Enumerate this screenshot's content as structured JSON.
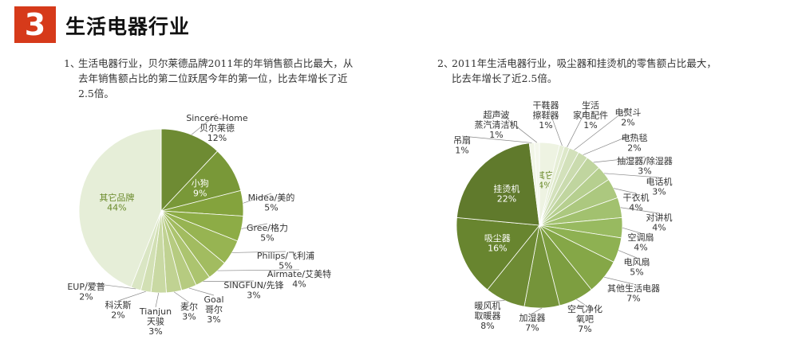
{
  "header": {
    "badge": "3",
    "title": "生活电器行业"
  },
  "notes": [
    {
      "num": "1、",
      "text": "生活电器行业，贝尔莱德品牌2011年的年销售额占比最大，从去年销售额占比的第二位跃居今年的第一位，比去年增长了近2.5倍。"
    },
    {
      "num": "2、",
      "text": "2011年生活电器行业，吸尘器和挂烫机的零售额占比最大，比去年增长了近2.5倍。"
    }
  ],
  "chart_data": [
    {
      "type": "pie",
      "title": "",
      "slices": [
        {
          "label": [
            "Sincere-Home",
            "贝尔莱德"
          ],
          "value": 12,
          "pct": "12%",
          "color": "#6e8b33"
        },
        {
          "label": [
            "小狗"
          ],
          "value": 9,
          "pct": "9%",
          "color": "#799838",
          "inside": true
        },
        {
          "label": [
            "Midea/美的"
          ],
          "value": 5,
          "pct": "5%",
          "color": "#84a33d"
        },
        {
          "label": [
            "Gree/格力"
          ],
          "value": 5,
          "pct": "5%",
          "color": "#8dac46"
        },
        {
          "label": [
            "Philips/飞利浦"
          ],
          "value": 5,
          "pct": "5%",
          "color": "#97b452"
        },
        {
          "label": [
            "Airmate/艾美特"
          ],
          "value": 4,
          "pct": "4%",
          "color": "#a2bc60"
        },
        {
          "label": [
            "SINGFUN/先锋"
          ],
          "value": 3,
          "pct": "3%",
          "color": "#acc46f"
        },
        {
          "label": [
            "Goal",
            "哥尔"
          ],
          "value": 3,
          "pct": "3%",
          "color": "#b6cb80"
        },
        {
          "label": [
            "麦尔"
          ],
          "value": 3,
          "pct": "3%",
          "color": "#c0d292"
        },
        {
          "label": [
            "Tianjun",
            "天骏"
          ],
          "value": 3,
          "pct": "3%",
          "color": "#c9d9a3"
        },
        {
          "label": [
            "科沃斯"
          ],
          "value": 2,
          "pct": "2%",
          "color": "#d2e0b4"
        },
        {
          "label": [
            "EUP/爱普"
          ],
          "value": 2,
          "pct": "2%",
          "color": "#dae6c4"
        },
        {
          "label": [
            "其它品牌"
          ],
          "value": 44,
          "pct": "44%",
          "color": "#e6eed8",
          "inside": true,
          "textColor": "#6a8a2a"
        }
      ]
    },
    {
      "type": "pie",
      "title": "",
      "slices": [
        {
          "label": [
            "其它"
          ],
          "value": 4,
          "pct": "4%",
          "color": "#eef3e2",
          "inside": true,
          "textColor": "#6a8a2a"
        },
        {
          "label": [
            "干鞋器",
            "擦鞋器"
          ],
          "value": 1,
          "pct": "1%",
          "color": "#e6eed6"
        },
        {
          "label": [
            "生活",
            "家电配件"
          ],
          "value": 1,
          "pct": "1%",
          "color": "#dde8c9"
        },
        {
          "label": [
            "电熨斗"
          ],
          "value": 2,
          "pct": "2%",
          "color": "#d3e1bb"
        },
        {
          "label": [
            "电热毯"
          ],
          "value": 2,
          "pct": "2%",
          "color": "#cadbae"
        },
        {
          "label": [
            "抽湿器/除湿器"
          ],
          "value": 3,
          "pct": "3%",
          "color": "#c0d59f"
        },
        {
          "label": [
            "电话机"
          ],
          "value": 3,
          "pct": "3%",
          "color": "#b6cf8f"
        },
        {
          "label": [
            "干衣机"
          ],
          "value": 4,
          "pct": "4%",
          "color": "#acc87f"
        },
        {
          "label": [
            "对讲机"
          ],
          "value": 4,
          "pct": "4%",
          "color": "#a2c16f"
        },
        {
          "label": [
            "空调扇"
          ],
          "value": 4,
          "pct": "4%",
          "color": "#98ba60"
        },
        {
          "label": [
            "电风扇"
          ],
          "value": 5,
          "pct": "5%",
          "color": "#8eb152"
        },
        {
          "label": [
            "其他生活电器"
          ],
          "value": 7,
          "pct": "7%",
          "color": "#85a747"
        },
        {
          "label": [
            "空气净化",
            "氧吧"
          ],
          "value": 7,
          "pct": "7%",
          "color": "#7d9e40"
        },
        {
          "label": [
            "加湿器"
          ],
          "value": 7,
          "pct": "7%",
          "color": "#75943a"
        },
        {
          "label": [
            "暖风机",
            "取暖器"
          ],
          "value": 8,
          "pct": "8%",
          "color": "#6e8b34"
        },
        {
          "label": [
            "吸尘器"
          ],
          "value": 16,
          "pct": "16%",
          "color": "#68852f",
          "inside": true
        },
        {
          "label": [
            "挂烫机"
          ],
          "value": 22,
          "pct": "22%",
          "color": "#607a2c",
          "inside": true
        },
        {
          "label": [
            "吊扇"
          ],
          "value": 1,
          "pct": "1%",
          "color": "#f1f5e7"
        },
        {
          "label": [
            "超声波",
            "蒸汽清洁机"
          ],
          "value": 1,
          "pct": "1%",
          "color": "#f4f7ec"
        }
      ]
    }
  ]
}
